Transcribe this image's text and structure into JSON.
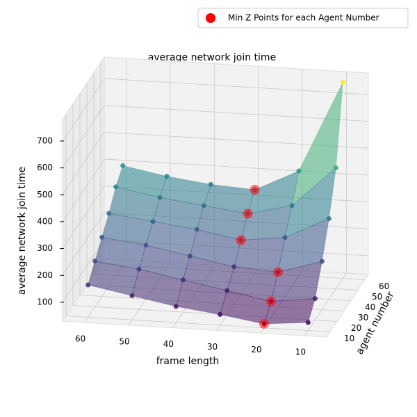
{
  "chart_data": {
    "type": "surface3d",
    "title": "average network join time",
    "xlabel": "frame length",
    "ylabel": "agent number",
    "zlabel": "average network join time",
    "x": [
      10,
      20,
      30,
      40,
      50,
      60,
      10,
      20,
      30,
      40,
      50,
      60,
      10,
      20,
      30,
      40,
      50,
      60,
      10,
      20,
      30,
      40,
      50,
      60,
      10,
      20,
      30,
      40,
      50,
      60,
      10,
      20,
      30,
      40,
      50,
      60
    ],
    "y": [
      10,
      10,
      10,
      10,
      10,
      10,
      20,
      20,
      20,
      20,
      20,
      20,
      30,
      30,
      30,
      30,
      30,
      30,
      40,
      40,
      40,
      40,
      40,
      40,
      50,
      50,
      50,
      50,
      50,
      50,
      60,
      60,
      60,
      60,
      60,
      60
    ],
    "z": [
      60,
      45,
      70,
      90,
      120,
      150,
      110,
      90,
      120,
      150,
      180,
      200,
      210,
      160,
      170,
      200,
      230,
      250,
      330,
      250,
      230,
      260,
      280,
      300,
      480,
      330,
      290,
      310,
      330,
      360,
      760,
      420,
      340,
      350,
      370,
      400
    ],
    "xlim": [
      5,
      65
    ],
    "ylim": [
      5,
      65
    ],
    "zlim": [
      30,
      780
    ],
    "xticks": [
      10,
      20,
      30,
      40,
      50,
      60
    ],
    "yticks": [
      10,
      20,
      30,
      40,
      50,
      60
    ],
    "zticks": [
      100,
      200,
      300,
      400,
      500,
      600,
      700
    ],
    "highlight": {
      "name": "Min Z Points for each Agent Number",
      "color": "red",
      "x": [
        20,
        20,
        20,
        30,
        30,
        30
      ],
      "y": [
        10,
        20,
        30,
        40,
        50,
        60
      ],
      "z": [
        45,
        90,
        160,
        230,
        290,
        340
      ]
    },
    "legend": "upper right",
    "grid": true
  }
}
